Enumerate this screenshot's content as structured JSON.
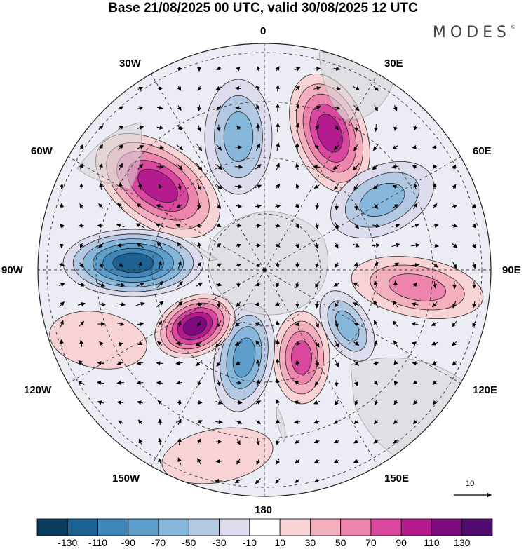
{
  "title": "Base 21/08/2025 00 UTC, valid 30/08/2025 12 UTC",
  "brand": "MODES",
  "brand_mark": "©",
  "map": {
    "projection": "polar-stereographic-south",
    "longitude_labels": {
      "lon_0": "0",
      "lon_30e": "30E",
      "lon_60e": "60E",
      "lon_90e": "90E",
      "lon_120e": "120E",
      "lon_150e": "150E",
      "lon_180": "180",
      "lon_150w": "150W",
      "lon_120w": "120W",
      "lon_90w": "90W",
      "lon_60w": "60W",
      "lon_30w": "30W"
    },
    "reference_vector": "10",
    "anomaly_centers": [
      {
        "name": "positive-anomaly-60w",
        "sign": "positive",
        "peak": 110
      },
      {
        "name": "negative-anomaly-0",
        "sign": "negative",
        "peak": -70
      },
      {
        "name": "positive-anomaly-30e",
        "sign": "positive",
        "peak": 110
      },
      {
        "name": "negative-anomaly-60e",
        "sign": "negative",
        "peak": -70
      },
      {
        "name": "positive-anomaly-90e",
        "sign": "positive",
        "peak": 70
      },
      {
        "name": "negative-anomaly-120e",
        "sign": "negative",
        "peak": -70
      },
      {
        "name": "positive-anomaly-160e",
        "sign": "positive",
        "peak": 90
      },
      {
        "name": "negative-anomaly-170w",
        "sign": "negative",
        "peak": -90
      },
      {
        "name": "positive-anomaly-130w",
        "sign": "positive",
        "peak": 130
      },
      {
        "name": "negative-anomaly-90w",
        "sign": "negative",
        "peak": -130
      },
      {
        "name": "positive-anomaly-110w",
        "sign": "positive",
        "peak": 30
      },
      {
        "name": "positive-anomaly-160w",
        "sign": "positive",
        "peak": 30
      }
    ]
  },
  "colorbar": {
    "ticks": [
      "-130",
      "-110",
      "-90",
      "-70",
      "-50",
      "-30",
      "-10",
      "10",
      "30",
      "50",
      "70",
      "90",
      "110",
      "130"
    ],
    "colors": [
      "#0b3d5e",
      "#1c6394",
      "#3f87bb",
      "#5e9ecb",
      "#86b6d9",
      "#b3c8e2",
      "#dcdced",
      "#ffffff",
      "#f8d3d6",
      "#f4afbe",
      "#ec84ad",
      "#d9479e",
      "#b41b8f",
      "#7d0a7e",
      "#4f0b70"
    ]
  }
}
